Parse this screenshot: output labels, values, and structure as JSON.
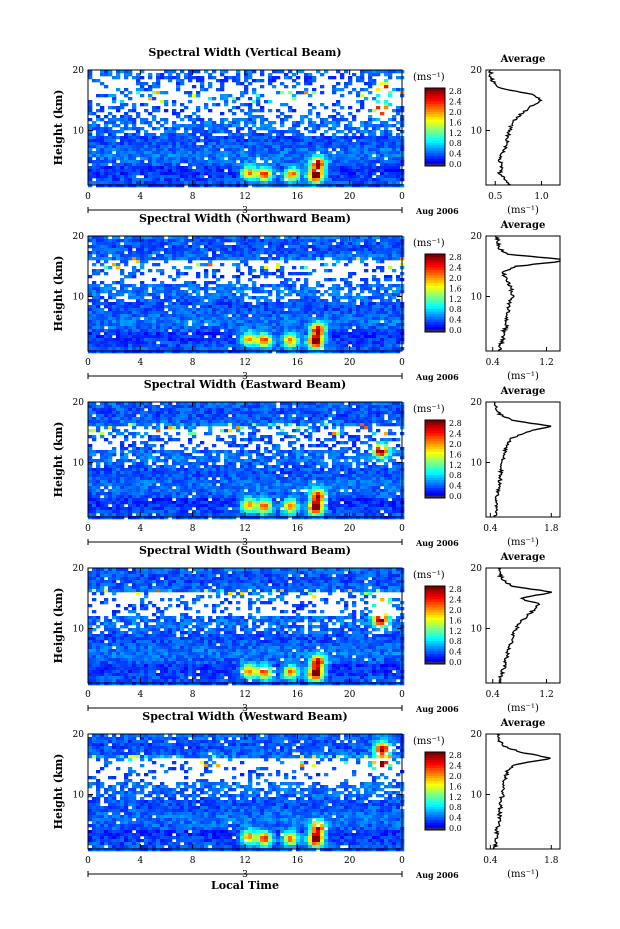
{
  "figure": {
    "local_time_label": "Local Time"
  },
  "chart_data": [
    {
      "type": "heatmap",
      "title": "Spectral Width (Vertical Beam)",
      "ylabel": "Height (km)",
      "xlim": [
        0,
        24
      ],
      "ylim": [
        1,
        20
      ],
      "x_ticks": [
        "0",
        "4",
        "8",
        "12",
        "16",
        "20",
        "0"
      ],
      "y_ticks": [
        "10",
        "20"
      ],
      "date_label": "3",
      "month_label": "Aug 2006",
      "colorbar": {
        "unit": "(ms⁻¹)",
        "ticks": [
          "0.0",
          "0.4",
          "0.8",
          "1.2",
          "1.6",
          "2.0",
          "2.4",
          "2.8"
        ],
        "range": [
          0,
          3.0
        ]
      },
      "noisy_regions": [
        [
          16.5,
          20,
          0.5
        ],
        [
          12,
          18,
          0.7
        ],
        [
          9,
          12,
          0.35
        ]
      ],
      "hotspots": [
        [
          12.3,
          3.0,
          1.9
        ],
        [
          13.5,
          2.8,
          2.2
        ],
        [
          15.6,
          2.8,
          2.0
        ],
        [
          17.4,
          2.6,
          3.0
        ],
        [
          17.6,
          4.5,
          2.4
        ],
        [
          22.4,
          13.5,
          2.8
        ],
        [
          22.6,
          17,
          2.4
        ]
      ],
      "average_profile": {
        "title": "Average",
        "xlabel": "(ms⁻¹)",
        "x_ticks": [
          "0.5",
          "1.0"
        ],
        "xlim": [
          0.4,
          1.2
        ],
        "y_ticks": [
          "10",
          "20"
        ],
        "heights": [
          1,
          2,
          3,
          4,
          5,
          6,
          7,
          8,
          9,
          10,
          11,
          12,
          13,
          14,
          15,
          16,
          17,
          18,
          19,
          20
        ],
        "values": [
          0.65,
          0.6,
          0.55,
          0.57,
          0.55,
          0.57,
          0.6,
          0.62,
          0.63,
          0.66,
          0.67,
          0.72,
          0.8,
          0.88,
          1.0,
          0.9,
          0.55,
          0.48,
          0.45,
          0.45
        ]
      }
    },
    {
      "type": "heatmap",
      "title": "Spectral Width (Northward Beam)",
      "ylabel": "Height (km)",
      "xlim": [
        0,
        24
      ],
      "ylim": [
        1,
        20
      ],
      "x_ticks": [
        "0",
        "4",
        "8",
        "12",
        "16",
        "20",
        "0"
      ],
      "y_ticks": [
        "10",
        "20"
      ],
      "date_label": "3",
      "month_label": "Aug 2006",
      "colorbar": {
        "unit": "(ms⁻¹)",
        "ticks": [
          "0.0",
          "0.4",
          "0.8",
          "1.2",
          "1.6",
          "2.0",
          "2.4",
          "2.8"
        ],
        "range": [
          0,
          3.0
        ]
      },
      "noisy_regions": [
        [
          16.5,
          20,
          0.05
        ],
        [
          12,
          16,
          0.75
        ],
        [
          9,
          12,
          0.25
        ]
      ],
      "hotspots": [
        [
          12.3,
          3.0,
          1.9
        ],
        [
          13.5,
          2.8,
          2.2
        ],
        [
          15.5,
          2.8,
          2.0
        ],
        [
          17.4,
          2.6,
          3.0
        ],
        [
          17.6,
          4.5,
          2.4
        ]
      ],
      "average_profile": {
        "title": "Average",
        "xlabel": "(ms⁻¹)",
        "x_ticks": [
          "0.4",
          "1.2"
        ],
        "xlim": [
          0.3,
          1.4
        ],
        "y_ticks": [
          "10",
          "20"
        ],
        "heights": [
          1,
          2,
          3,
          4,
          5,
          6,
          7,
          8,
          9,
          10,
          11,
          12,
          13,
          14,
          15,
          16,
          17,
          18,
          19,
          20
        ],
        "values": [
          0.5,
          0.52,
          0.55,
          0.55,
          0.6,
          0.6,
          0.62,
          0.63,
          0.65,
          0.7,
          0.68,
          0.65,
          0.6,
          0.55,
          0.75,
          1.6,
          0.6,
          0.5,
          0.48,
          0.45
        ]
      }
    },
    {
      "type": "heatmap",
      "title": "Spectral Width (Eastward Beam)",
      "ylabel": "Height (km)",
      "xlim": [
        0,
        24
      ],
      "ylim": [
        1,
        20
      ],
      "x_ticks": [
        "0",
        "4",
        "8",
        "12",
        "16",
        "20",
        "0"
      ],
      "y_ticks": [
        "10",
        "20"
      ],
      "date_label": "3",
      "month_label": "Aug 2006",
      "colorbar": {
        "unit": "(ms⁻¹)",
        "ticks": [
          "0.0",
          "0.4",
          "0.8",
          "1.2",
          "1.6",
          "2.0",
          "2.4",
          "2.8"
        ],
        "range": [
          0,
          3.0
        ]
      },
      "noisy_regions": [
        [
          16.5,
          20,
          0.03
        ],
        [
          12,
          16,
          0.6
        ],
        [
          9,
          12,
          0.2
        ]
      ],
      "hotspots": [
        [
          12.3,
          3.0,
          1.9
        ],
        [
          13.5,
          2.8,
          2.2
        ],
        [
          15.5,
          2.8,
          2.0
        ],
        [
          17.4,
          2.6,
          3.0
        ],
        [
          17.6,
          4.5,
          2.4
        ],
        [
          22.4,
          12,
          2.8
        ]
      ],
      "average_profile": {
        "title": "Average",
        "xlabel": "(ms⁻¹)",
        "x_ticks": [
          "0.4",
          "1.8"
        ],
        "xlim": [
          0.3,
          2.0
        ],
        "y_ticks": [
          "10",
          "20"
        ],
        "heights": [
          1,
          2,
          3,
          4,
          5,
          6,
          7,
          8,
          9,
          10,
          11,
          12,
          13,
          14,
          15,
          16,
          17,
          18,
          19,
          20
        ],
        "values": [
          0.5,
          0.52,
          0.55,
          0.55,
          0.58,
          0.6,
          0.62,
          0.63,
          0.65,
          0.68,
          0.7,
          0.75,
          0.8,
          0.9,
          1.2,
          1.8,
          0.9,
          0.6,
          0.55,
          0.5
        ]
      }
    },
    {
      "type": "heatmap",
      "title": "Spectral Width (Southward Beam)",
      "ylabel": "Height (km)",
      "xlim": [
        0,
        24
      ],
      "ylim": [
        1,
        20
      ],
      "x_ticks": [
        "0",
        "4",
        "8",
        "12",
        "16",
        "20",
        "0"
      ],
      "y_ticks": [
        "10",
        "20"
      ],
      "date_label": "3",
      "month_label": "Aug 2006",
      "colorbar": {
        "unit": "(ms⁻¹)",
        "ticks": [
          "0.0",
          "0.4",
          "0.8",
          "1.2",
          "1.6",
          "2.0",
          "2.4",
          "2.8"
        ],
        "range": [
          0,
          3.0
        ]
      },
      "noisy_regions": [
        [
          16.5,
          20,
          0.05
        ],
        [
          12,
          16,
          0.75
        ],
        [
          9,
          12,
          0.25
        ]
      ],
      "hotspots": [
        [
          12.3,
          3.0,
          1.9
        ],
        [
          13.5,
          2.8,
          2.2
        ],
        [
          15.5,
          2.8,
          2.0
        ],
        [
          17.4,
          2.6,
          3.0
        ],
        [
          17.6,
          4.5,
          2.4
        ],
        [
          22.4,
          11.5,
          2.8
        ],
        [
          22.5,
          14,
          2.4
        ]
      ],
      "average_profile": {
        "title": "Average",
        "xlabel": "(ms⁻¹)",
        "x_ticks": [
          "0.4",
          "1.2"
        ],
        "xlim": [
          0.3,
          1.4
        ],
        "y_ticks": [
          "10",
          "20"
        ],
        "heights": [
          1,
          2,
          3,
          4,
          5,
          6,
          7,
          8,
          9,
          10,
          11,
          12,
          13,
          14,
          15,
          16,
          17,
          18,
          19,
          20
        ],
        "values": [
          0.5,
          0.52,
          0.55,
          0.58,
          0.6,
          0.62,
          0.65,
          0.68,
          0.7,
          0.75,
          0.8,
          0.9,
          1.0,
          1.1,
          0.8,
          1.3,
          0.7,
          0.55,
          0.5,
          0.48
        ]
      }
    },
    {
      "type": "heatmap",
      "title": "Spectral Width (Westward Beam)",
      "ylabel": "Height (km)",
      "xlim": [
        0,
        24
      ],
      "ylim": [
        1,
        20
      ],
      "x_ticks": [
        "0",
        "4",
        "8",
        "12",
        "16",
        "20",
        "0"
      ],
      "y_ticks": [
        "10",
        "20"
      ],
      "date_label": "3",
      "month_label": "Aug 2006",
      "colorbar": {
        "unit": "(ms⁻¹)",
        "ticks": [
          "0.0",
          "0.4",
          "0.8",
          "1.2",
          "1.6",
          "2.0",
          "2.4",
          "2.8"
        ],
        "range": [
          0,
          3.0
        ]
      },
      "noisy_regions": [
        [
          16.5,
          20,
          0.06
        ],
        [
          12,
          16,
          0.8
        ],
        [
          9,
          12,
          0.3
        ]
      ],
      "hotspots": [
        [
          12.3,
          3.0,
          1.9
        ],
        [
          13.5,
          2.8,
          2.2
        ],
        [
          15.5,
          2.8,
          2.0
        ],
        [
          17.4,
          2.6,
          3.0
        ],
        [
          17.6,
          4.5,
          2.4
        ],
        [
          22.4,
          15,
          2.8
        ],
        [
          22.5,
          17.5,
          2.6
        ]
      ],
      "average_profile": {
        "title": "Average",
        "xlabel": "(ms⁻¹)",
        "x_ticks": [
          "0.4",
          "1.8"
        ],
        "xlim": [
          0.3,
          2.0
        ],
        "y_ticks": [
          "10",
          "20"
        ],
        "heights": [
          1,
          2,
          3,
          4,
          5,
          6,
          7,
          8,
          9,
          10,
          11,
          12,
          13,
          14,
          15,
          16,
          17,
          18,
          19,
          20
        ],
        "values": [
          0.5,
          0.52,
          0.55,
          0.55,
          0.58,
          0.6,
          0.62,
          0.63,
          0.65,
          0.68,
          0.7,
          0.72,
          0.75,
          0.8,
          1.0,
          1.8,
          1.1,
          0.7,
          0.6,
          0.55
        ]
      }
    }
  ]
}
